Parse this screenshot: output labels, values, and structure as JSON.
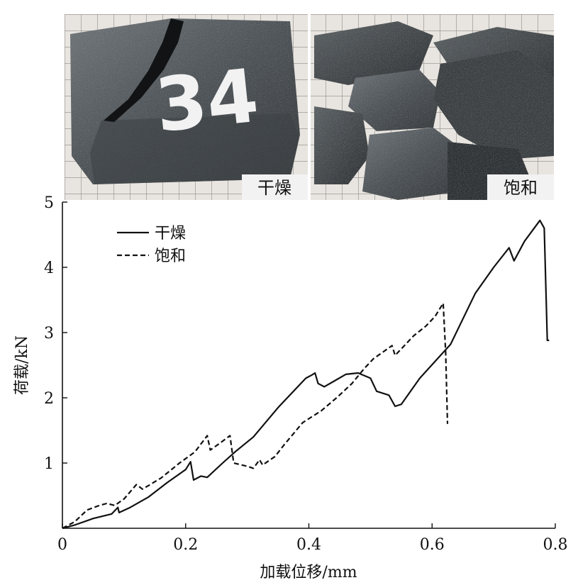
{
  "photos": [
    {
      "label": "干燥",
      "specimen_number": "34"
    },
    {
      "label": "饱和"
    }
  ],
  "chart_data": {
    "type": "line",
    "xlabel": "加载位移/mm",
    "ylabel": "荷载/kN",
    "xlim": [
      0,
      0.8
    ],
    "ylim": [
      0,
      5
    ],
    "x_ticks": [
      "0",
      "0.2",
      "0.4",
      "0.6",
      "0.8"
    ],
    "y_ticks": [
      "1",
      "2",
      "3",
      "4",
      "5"
    ],
    "legend_position": "top-left",
    "grid": false,
    "series": [
      {
        "name": "干燥",
        "style": "solid",
        "points": [
          [
            0,
            0
          ],
          [
            0.02,
            0.05
          ],
          [
            0.05,
            0.15
          ],
          [
            0.08,
            0.22
          ],
          [
            0.09,
            0.32
          ],
          [
            0.092,
            0.24
          ],
          [
            0.11,
            0.32
          ],
          [
            0.14,
            0.48
          ],
          [
            0.17,
            0.7
          ],
          [
            0.2,
            0.9
          ],
          [
            0.208,
            1.02
          ],
          [
            0.213,
            0.74
          ],
          [
            0.225,
            0.8
          ],
          [
            0.235,
            0.78
          ],
          [
            0.26,
            1.0
          ],
          [
            0.28,
            1.17
          ],
          [
            0.31,
            1.4
          ],
          [
            0.35,
            1.85
          ],
          [
            0.38,
            2.15
          ],
          [
            0.395,
            2.3
          ],
          [
            0.405,
            2.35
          ],
          [
            0.41,
            2.38
          ],
          [
            0.415,
            2.22
          ],
          [
            0.425,
            2.17
          ],
          [
            0.44,
            2.25
          ],
          [
            0.46,
            2.36
          ],
          [
            0.48,
            2.38
          ],
          [
            0.5,
            2.3
          ],
          [
            0.51,
            2.1
          ],
          [
            0.53,
            2.04
          ],
          [
            0.54,
            1.87
          ],
          [
            0.55,
            1.9
          ],
          [
            0.58,
            2.3
          ],
          [
            0.605,
            2.56
          ],
          [
            0.63,
            2.82
          ],
          [
            0.67,
            3.6
          ],
          [
            0.7,
            4.0
          ],
          [
            0.725,
            4.3
          ],
          [
            0.733,
            4.1
          ],
          [
            0.75,
            4.4
          ],
          [
            0.775,
            4.72
          ],
          [
            0.782,
            4.6
          ],
          [
            0.787,
            2.88
          ],
          [
            0.79,
            2.88
          ]
        ]
      },
      {
        "name": "饱和",
        "style": "dashed",
        "points": [
          [
            0,
            0
          ],
          [
            0.02,
            0.1
          ],
          [
            0.04,
            0.28
          ],
          [
            0.06,
            0.35
          ],
          [
            0.072,
            0.38
          ],
          [
            0.085,
            0.35
          ],
          [
            0.1,
            0.45
          ],
          [
            0.12,
            0.67
          ],
          [
            0.13,
            0.6
          ],
          [
            0.16,
            0.77
          ],
          [
            0.19,
            1.0
          ],
          [
            0.215,
            1.17
          ],
          [
            0.235,
            1.42
          ],
          [
            0.24,
            1.2
          ],
          [
            0.255,
            1.3
          ],
          [
            0.272,
            1.42
          ],
          [
            0.278,
            1.0
          ],
          [
            0.3,
            0.95
          ],
          [
            0.31,
            0.92
          ],
          [
            0.32,
            1.05
          ],
          [
            0.325,
            0.97
          ],
          [
            0.345,
            1.1
          ],
          [
            0.36,
            1.28
          ],
          [
            0.375,
            1.45
          ],
          [
            0.39,
            1.62
          ],
          [
            0.42,
            1.8
          ],
          [
            0.445,
            2.0
          ],
          [
            0.47,
            2.22
          ],
          [
            0.49,
            2.45
          ],
          [
            0.505,
            2.6
          ],
          [
            0.52,
            2.7
          ],
          [
            0.535,
            2.8
          ],
          [
            0.54,
            2.65
          ],
          [
            0.555,
            2.8
          ],
          [
            0.57,
            2.95
          ],
          [
            0.59,
            3.1
          ],
          [
            0.605,
            3.25
          ],
          [
            0.618,
            3.45
          ],
          [
            0.622,
            2.7
          ],
          [
            0.625,
            1.6
          ]
        ]
      }
    ]
  }
}
